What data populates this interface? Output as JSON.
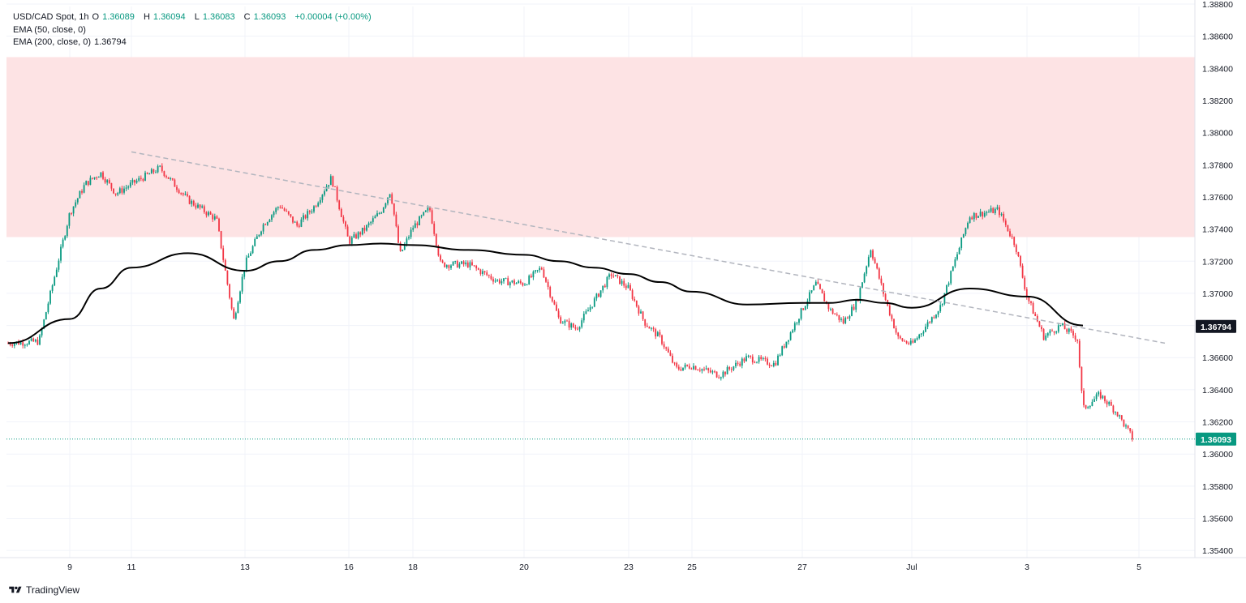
{
  "header": {
    "symbol": "USD/CAD Spot, 1h",
    "ohlc": {
      "open_label": "O",
      "open": "1.36089",
      "high_label": "H",
      "high": "1.36094",
      "low_label": "L",
      "low": "1.36083",
      "close_label": "C",
      "close": "1.36093",
      "change": "+0.00004 (+0.00%)"
    },
    "ema50": "EMA (50, close, 0)",
    "ema200": "EMA (200, close, 0)",
    "ema200_value": "1.36794"
  },
  "branding": {
    "name": "TradingView",
    "icon": "tradingview-logo-icon"
  },
  "colors": {
    "up": "#089981",
    "down": "#f23645",
    "ema": "#000000",
    "zone": "#fde3e4",
    "trendline": "#b2b5be",
    "price_line": "#089981",
    "grid": "#f0f3fa"
  },
  "chart_data": {
    "type": "candlestick",
    "title": "USD/CAD Spot, 1h",
    "xlabel": "",
    "ylabel": "",
    "ylim": [
      1.353,
      1.388
    ],
    "grid": true,
    "y_ticks": [
      "1.35400",
      "1.35600",
      "1.35800",
      "1.36000",
      "1.36200",
      "1.36400",
      "1.36600",
      "1.36800",
      "1.37000",
      "1.37200",
      "1.37400",
      "1.37600",
      "1.37800",
      "1.38000",
      "1.38200",
      "1.38400",
      "1.38600",
      "1.38800"
    ],
    "x_ticks": [
      "9",
      "11",
      "13",
      "16",
      "18",
      "20",
      "23",
      "25",
      "27",
      "Jul",
      "3",
      "5"
    ],
    "last_price": "1.36093",
    "ema200_last": "1.36794",
    "resistance_zone": [
      1.3735,
      1.3847
    ],
    "trendline": {
      "start": [
        "11",
        1.3788
      ],
      "end": [
        "5",
        1.3669
      ]
    },
    "ema200_series": [
      [
        "8",
        1.3669
      ],
      [
        "9",
        1.3684
      ],
      [
        "10",
        1.3703
      ],
      [
        "11",
        1.3716
      ],
      [
        "12",
        1.3725
      ],
      [
        "13",
        1.3714
      ],
      [
        "14",
        1.372
      ],
      [
        "15",
        1.3727
      ],
      [
        "16",
        1.373
      ],
      [
        "17",
        1.3731
      ],
      [
        "18",
        1.373
      ],
      [
        "19",
        1.3727
      ],
      [
        "20",
        1.3724
      ],
      [
        "21",
        1.372
      ],
      [
        "22",
        1.3716
      ],
      [
        "23",
        1.3712
      ],
      [
        "24",
        1.3707
      ],
      [
        "25",
        1.3701
      ],
      [
        "26",
        1.3693
      ],
      [
        "27",
        1.3694
      ],
      [
        "28",
        1.3694
      ],
      [
        "29",
        1.3696
      ],
      [
        "30",
        1.3694
      ],
      [
        "Jul",
        1.3691
      ],
      [
        "2",
        1.3703
      ],
      [
        "3",
        1.3698
      ],
      [
        "4",
        1.368
      ]
    ],
    "close_series": [
      [
        "8",
        1.3669
      ],
      [
        "8.5",
        1.367
      ],
      [
        "9",
        1.375
      ],
      [
        "9.5",
        1.3768
      ],
      [
        "10",
        1.3775
      ],
      [
        "10.5",
        1.3762
      ],
      [
        "11",
        1.3768
      ],
      [
        "11.5",
        1.3778
      ],
      [
        "12",
        1.3758
      ],
      [
        "12.5",
        1.3746
      ],
      [
        "12.8",
        1.3683
      ],
      [
        "13",
        1.3718
      ],
      [
        "13.5",
        1.3742
      ],
      [
        "14",
        1.3755
      ],
      [
        "14.5",
        1.3742
      ],
      [
        "15",
        1.3754
      ],
      [
        "15.5",
        1.3772
      ],
      [
        "16",
        1.3732
      ],
      [
        "16.5",
        1.374
      ],
      [
        "17",
        1.3751
      ],
      [
        "17.3",
        1.3764
      ],
      [
        "17.6",
        1.3724
      ],
      [
        "18",
        1.3741
      ],
      [
        "18.3",
        1.3753
      ],
      [
        "18.5",
        1.3718
      ],
      [
        "19",
        1.3718
      ],
      [
        "19.5",
        1.3708
      ],
      [
        "20",
        1.3706
      ],
      [
        "20.5",
        1.3716
      ],
      [
        "21",
        1.3684
      ],
      [
        "21.5",
        1.3678
      ],
      [
        "22",
        1.3695
      ],
      [
        "22.5",
        1.3712
      ],
      [
        "23",
        1.3703
      ],
      [
        "23.5",
        1.3682
      ],
      [
        "24",
        1.3672
      ],
      [
        "24.5",
        1.3653
      ],
      [
        "25",
        1.3655
      ],
      [
        "25.5",
        1.3649
      ],
      [
        "26",
        1.366
      ],
      [
        "26.5",
        1.3656
      ],
      [
        "27",
        1.369
      ],
      [
        "27.5",
        1.3706
      ],
      [
        "28",
        1.369
      ],
      [
        "28.5",
        1.3682
      ],
      [
        "29",
        1.3695
      ],
      [
        "29.5",
        1.3728
      ],
      [
        "30",
        1.3698
      ],
      [
        "30.5",
        1.3672
      ],
      [
        "Jul",
        1.3668
      ],
      [
        "1.5",
        1.3692
      ],
      [
        "2",
        1.3748
      ],
      [
        "2.5",
        1.3752
      ],
      [
        "2.8",
        1.373
      ],
      [
        "3",
        1.3698
      ],
      [
        "3.3",
        1.3673
      ],
      [
        "3.6",
        1.368
      ],
      [
        "3.9",
        1.3672
      ],
      [
        "4",
        1.3628
      ],
      [
        "4.3",
        1.3637
      ],
      [
        "4.6",
        1.3626
      ],
      [
        "4.9",
        1.3609
      ]
    ]
  }
}
